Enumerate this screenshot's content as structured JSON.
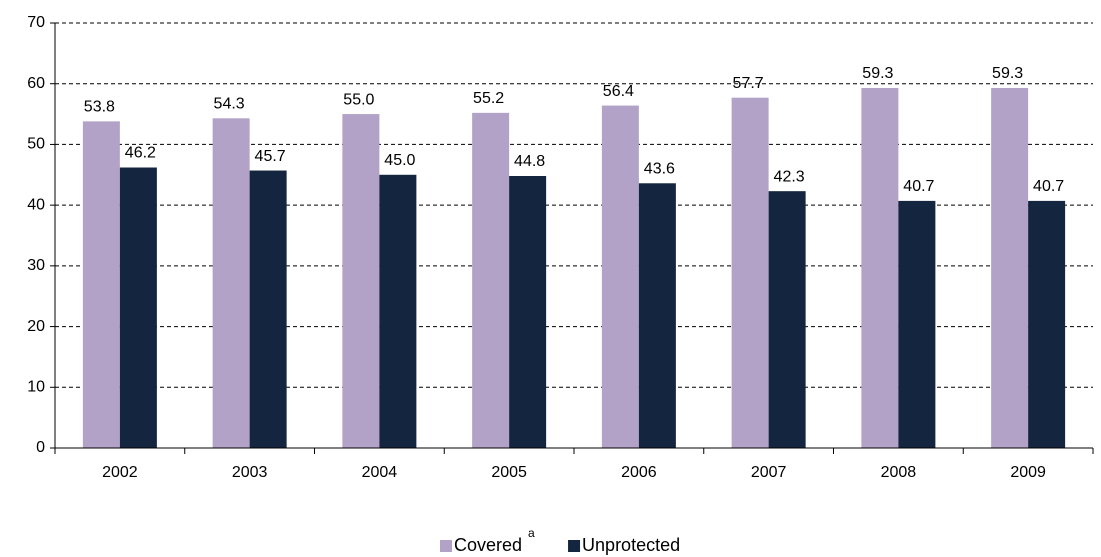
{
  "chart_data": {
    "type": "bar",
    "categories": [
      "2002",
      "2003",
      "2004",
      "2005",
      "2006",
      "2007",
      "2008",
      "2009"
    ],
    "series": [
      {
        "name": "Covered",
        "superscript": "a",
        "color": "#b3a2c7",
        "values": [
          53.8,
          54.3,
          55.0,
          55.2,
          56.4,
          57.7,
          59.3,
          59.3
        ],
        "value_labels": [
          "53.8",
          "54.3",
          "55.0",
          "55.2",
          "56.4",
          "57.7",
          "59.3",
          "59.3"
        ]
      },
      {
        "name": "Unprotected",
        "color": "#14253f",
        "values": [
          46.2,
          45.7,
          45.0,
          44.8,
          43.6,
          42.3,
          40.7,
          40.7
        ],
        "value_labels": [
          "46.2",
          "45.7",
          "45.0",
          "44.8",
          "43.6",
          "42.3",
          "40.7",
          "40.7"
        ]
      }
    ],
    "ylim": [
      0,
      70
    ],
    "yticks": [
      0,
      10,
      20,
      30,
      40,
      50,
      60,
      70
    ],
    "grid": true,
    "legend": "bottom"
  }
}
